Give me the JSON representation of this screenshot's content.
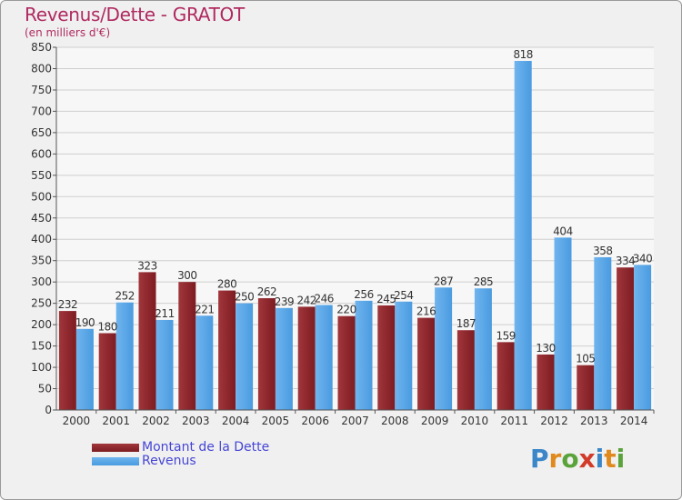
{
  "title": "Revenus/Dette - GRATOT",
  "subtitle": "(en milliers d'€)",
  "logo": {
    "text": "Proxiti",
    "letters": [
      "P",
      "r",
      "o",
      "x",
      "i",
      "t",
      "i"
    ],
    "letter_colors": [
      "#3a86c8",
      "#e08a1e",
      "#5aa33a",
      "#d23a2a",
      "#3a86c8",
      "#e08a1e",
      "#5aa33a"
    ]
  },
  "colors": {
    "dette": "#7d1c22",
    "dette_light": "#a0363b",
    "revenus": "#4a9be0",
    "revenus_light": "#6fb4ee",
    "axis_text": "#333333",
    "grid": "#cfcfcf"
  },
  "chart_data": {
    "type": "bar",
    "title": "Revenus/Dette - GRATOT",
    "subtitle": "(en milliers d'€)",
    "categories": [
      "2000",
      "2001",
      "2002",
      "2003",
      "2004",
      "2005",
      "2006",
      "2007",
      "2008",
      "2009",
      "2010",
      "2011",
      "2012",
      "2013",
      "2014"
    ],
    "series": [
      {
        "name": "Montant de la Dette",
        "values": [
          232,
          180,
          323,
          300,
          280,
          262,
          242,
          220,
          245,
          216,
          187,
          159,
          130,
          105,
          334
        ]
      },
      {
        "name": "Revenus",
        "values": [
          190,
          252,
          211,
          221,
          250,
          239,
          246,
          256,
          254,
          287,
          285,
          818,
          404,
          358,
          340
        ]
      }
    ],
    "ylim": [
      0,
      850
    ],
    "yticks": [
      0,
      50,
      100,
      150,
      200,
      250,
      300,
      350,
      400,
      450,
      500,
      550,
      600,
      650,
      700,
      750,
      800,
      850
    ],
    "grid": true,
    "legend_position": "bottom-left"
  }
}
